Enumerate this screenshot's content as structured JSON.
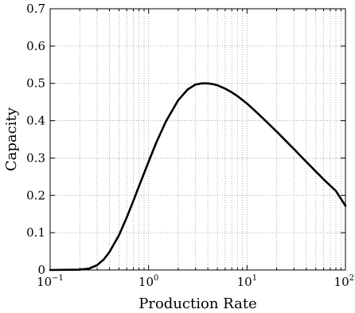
{
  "chart_data": {
    "type": "line",
    "title": "",
    "xlabel": "Production Rate",
    "ylabel": "Capacity",
    "xscale": "log",
    "xlim": [
      0.1,
      100
    ],
    "ylim": [
      0,
      0.7
    ],
    "grid": true,
    "x_ticks": [
      {
        "base": "10",
        "exp": "−1"
      },
      {
        "base": "10",
        "exp": "0"
      },
      {
        "base": "10",
        "exp": "1"
      },
      {
        "base": "10",
        "exp": "2"
      }
    ],
    "y_ticks": [
      "0",
      "0.1",
      "0.2",
      "0.3",
      "0.4",
      "0.5",
      "0.6",
      "0.7"
    ],
    "series": [
      {
        "color": "#000000",
        "x": [
          0.1,
          0.2,
          0.25,
          0.3,
          0.35,
          0.4,
          0.5,
          0.6,
          0.7,
          0.8,
          1.0,
          1.2,
          1.5,
          2.0,
          2.5,
          3.0,
          3.5,
          4.0,
          4.5,
          5.0,
          6.0,
          7.0,
          8.0,
          10.0,
          12.0,
          15.0,
          20.0,
          25.0,
          30.0,
          40.0,
          50.0,
          60.0,
          70.0,
          80.0,
          100.0
        ],
        "y": [
          0.0,
          0.001,
          0.004,
          0.013,
          0.028,
          0.048,
          0.093,
          0.141,
          0.185,
          0.225,
          0.29,
          0.342,
          0.398,
          0.455,
          0.484,
          0.497,
          0.5,
          0.5,
          0.498,
          0.495,
          0.486,
          0.476,
          0.466,
          0.446,
          0.427,
          0.403,
          0.371,
          0.345,
          0.324,
          0.29,
          0.264,
          0.243,
          0.226,
          0.212,
          0.172
        ]
      }
    ]
  }
}
